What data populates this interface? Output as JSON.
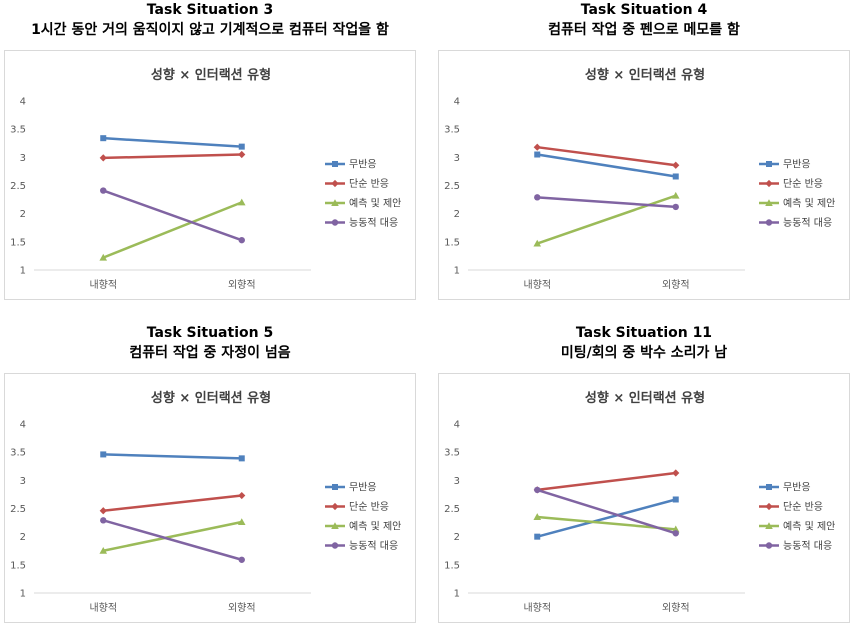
{
  "panels": [
    {
      "title_line1": "Task Situation 3",
      "title_line2": "1시간 동안 거의 움직이지 않고 기계적으로 컴퓨터 작업을 함"
    },
    {
      "title_line1": "Task Situation 4",
      "title_line2": "컴퓨터 작업 중 펜으로 메모를 함"
    },
    {
      "title_line1": "Task Situation 5",
      "title_line2": "컴퓨터 작업 중 자정이 넘음"
    },
    {
      "title_line1": "Task Situation 11",
      "title_line2": "미팅/회의 중 박수 소리가 남"
    }
  ],
  "chart_data": [
    {
      "type": "line",
      "title": "성향 × 인터랙션 유형",
      "categories": [
        "내향적",
        "외향적"
      ],
      "yticks": [
        "1",
        "1.5",
        "2",
        "2.5",
        "3",
        "3.5",
        "4"
      ],
      "ylim": [
        1,
        4
      ],
      "legend_position": "right",
      "series": [
        {
          "name": "무반응",
          "color": "#4f81bd",
          "marker": "square",
          "values": [
            3.34,
            3.19
          ]
        },
        {
          "name": "단순 반응",
          "color": "#c0504d",
          "marker": "diamond",
          "values": [
            2.99,
            3.05
          ]
        },
        {
          "name": "예측 및 제안",
          "color": "#9bbb59",
          "marker": "triangle",
          "values": [
            1.22,
            2.2
          ]
        },
        {
          "name": "능동적 대응",
          "color": "#8064a2",
          "marker": "circle",
          "values": [
            2.41,
            1.53
          ]
        }
      ]
    },
    {
      "type": "line",
      "title": "성향 × 인터랙션 유형",
      "categories": [
        "내향적",
        "외향적"
      ],
      "yticks": [
        "1",
        "1.5",
        "2",
        "2.5",
        "3",
        "3.5",
        "4"
      ],
      "ylim": [
        1,
        4
      ],
      "legend_position": "right",
      "series": [
        {
          "name": "무반응",
          "color": "#4f81bd",
          "marker": "square",
          "values": [
            3.05,
            2.66
          ]
        },
        {
          "name": "단순 반응",
          "color": "#c0504d",
          "marker": "diamond",
          "values": [
            3.18,
            2.86
          ]
        },
        {
          "name": "예측 및 제안",
          "color": "#9bbb59",
          "marker": "triangle",
          "values": [
            1.47,
            2.32
          ]
        },
        {
          "name": "능동적 대응",
          "color": "#8064a2",
          "marker": "circle",
          "values": [
            2.29,
            2.12
          ]
        }
      ]
    },
    {
      "type": "line",
      "title": "성향 × 인터랙션 유형",
      "categories": [
        "내향적",
        "외향적"
      ],
      "yticks": [
        "1",
        "1.5",
        "2",
        "2.5",
        "3",
        "3.5",
        "4"
      ],
      "ylim": [
        1,
        4
      ],
      "legend_position": "right",
      "series": [
        {
          "name": "무반응",
          "color": "#4f81bd",
          "marker": "square",
          "values": [
            3.46,
            3.39
          ]
        },
        {
          "name": "단순 반응",
          "color": "#c0504d",
          "marker": "diamond",
          "values": [
            2.46,
            2.73
          ]
        },
        {
          "name": "예측 및 제안",
          "color": "#9bbb59",
          "marker": "triangle",
          "values": [
            1.75,
            2.26
          ]
        },
        {
          "name": "능동적 대응",
          "color": "#8064a2",
          "marker": "circle",
          "values": [
            2.29,
            1.59
          ]
        }
      ]
    },
    {
      "type": "line",
      "title": "성향 × 인터랙션 유형",
      "categories": [
        "내향적",
        "외향적"
      ],
      "yticks": [
        "1",
        "1.5",
        "2",
        "2.5",
        "3",
        "3.5",
        "4"
      ],
      "ylim": [
        1,
        4
      ],
      "legend_position": "right",
      "series": [
        {
          "name": "무반응",
          "color": "#4f81bd",
          "marker": "square",
          "values": [
            2.0,
            2.66
          ]
        },
        {
          "name": "단순 반응",
          "color": "#c0504d",
          "marker": "diamond",
          "values": [
            2.83,
            3.13
          ]
        },
        {
          "name": "예측 및 제안",
          "color": "#9bbb59",
          "marker": "triangle",
          "values": [
            2.35,
            2.13
          ]
        },
        {
          "name": "능동적 대응",
          "color": "#8064a2",
          "marker": "circle",
          "values": [
            2.83,
            2.06
          ]
        }
      ]
    }
  ]
}
